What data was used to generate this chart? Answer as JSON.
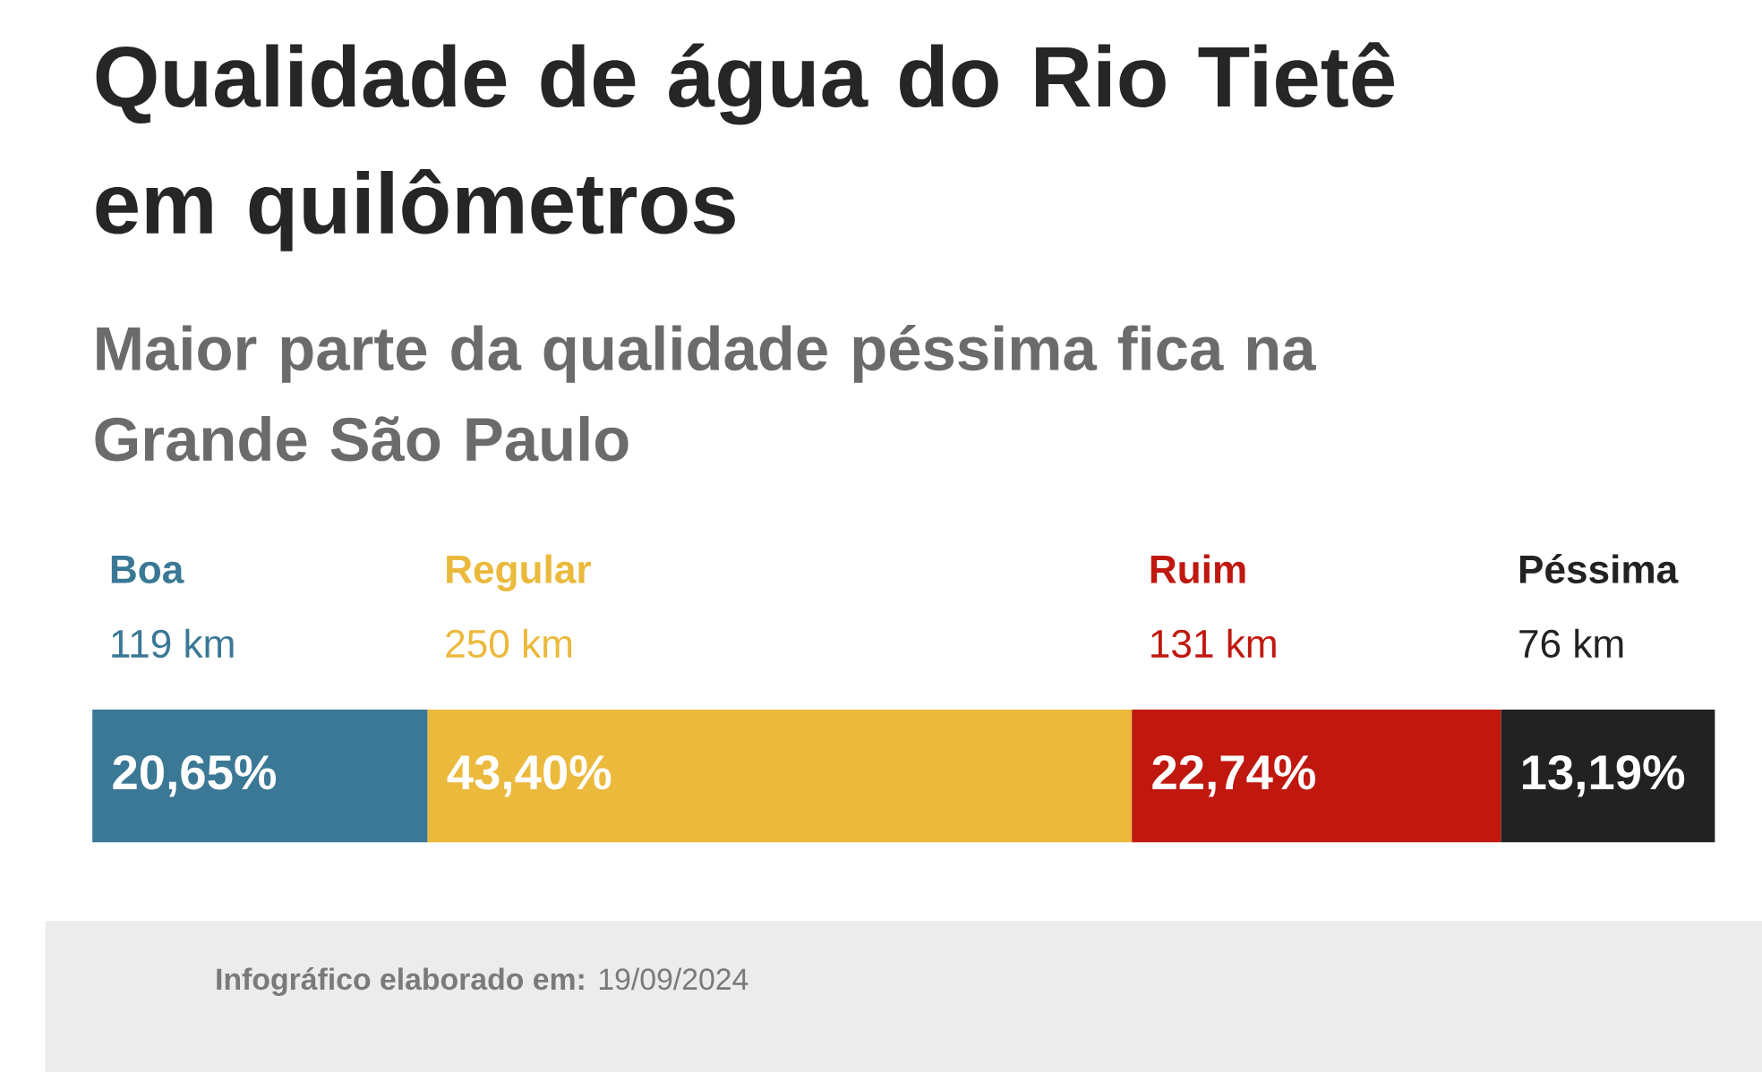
{
  "chart_data": {
    "type": "bar",
    "orientation": "horizontal",
    "stacked": true,
    "tick_labels": false,
    "title": "Qualidade de água do Rio Tietê em quilômetros",
    "subtitle": "Maior parte da qualidade péssima fica na Grande São Paulo",
    "categories": [
      null
    ],
    "series": [
      {
        "name": "Boa",
        "color": "#3a7895",
        "values": [
          20.65
        ],
        "value_labels": [
          "20,65%"
        ]
      },
      {
        "name": "Regular",
        "color": "#ebb93b",
        "values": [
          43.4
        ],
        "value_labels": [
          "43,40%"
        ]
      },
      {
        "name": "Ruim",
        "color": "#c0180f",
        "values": [
          22.74
        ],
        "value_labels": [
          "22,74%"
        ]
      },
      {
        "name": "Péssima",
        "color": "#222222",
        "values": [
          13.19
        ],
        "value_labels": [
          "13,19%"
        ]
      }
    ],
    "annotations": [
      "119 km",
      "250 km",
      "131 km",
      "76 km",
      "**Infográfico elaborado em:** 19/09/2024"
    ]
  }
}
